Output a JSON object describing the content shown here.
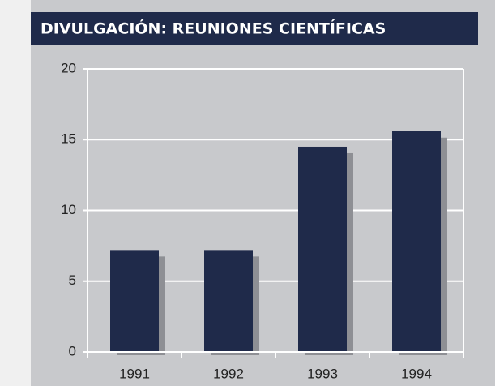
{
  "chart_data": {
    "type": "bar",
    "title": "DIVULGACIÓN: REUNIONES CIENTÍFICAS",
    "categories": [
      "1991",
      "1992",
      "1993",
      "1994"
    ],
    "values": [
      7.2,
      7.2,
      14.5,
      15.6
    ],
    "color": "#1f2a4a",
    "ylim": [
      0,
      20
    ],
    "yticks": [
      0,
      5,
      10,
      15,
      20
    ],
    "grid": true
  }
}
